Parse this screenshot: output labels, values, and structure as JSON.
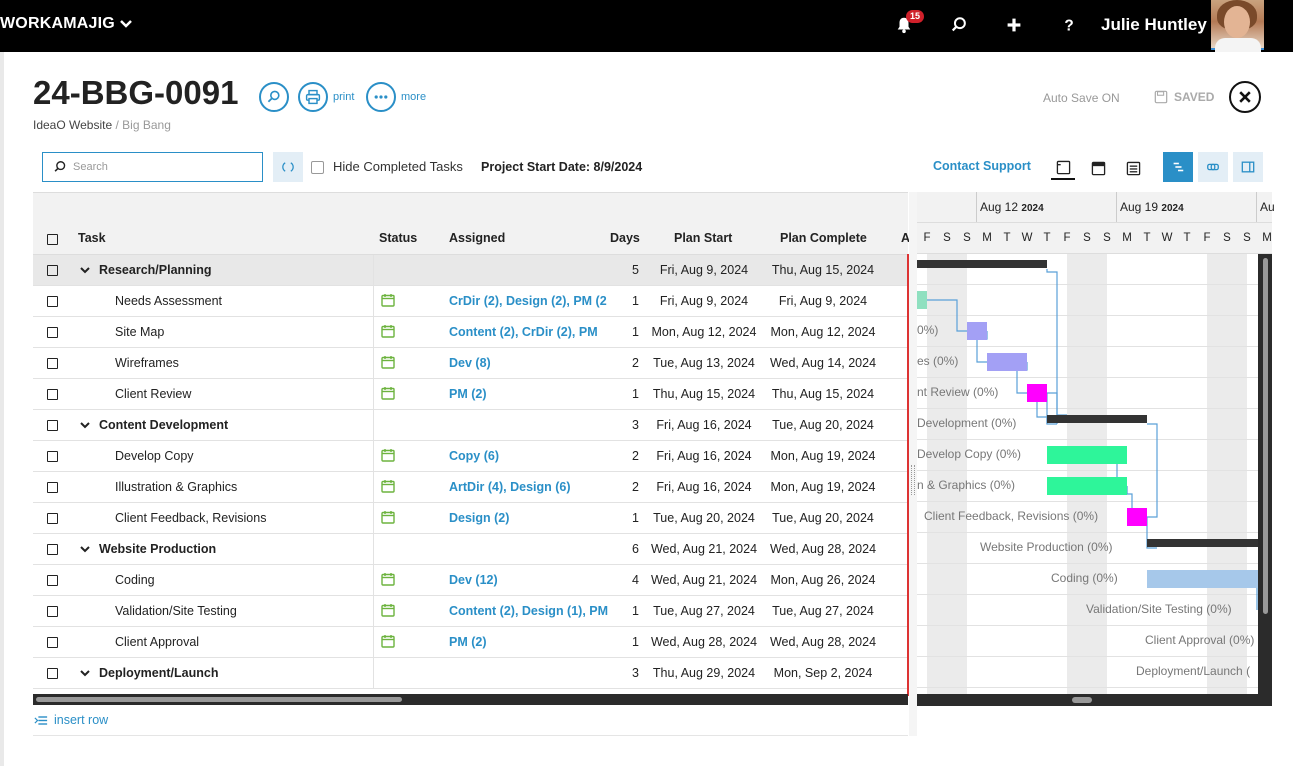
{
  "topbar": {
    "brand": "WORKAMAJIG",
    "notification_count": "15",
    "user_name": "Julie Huntley"
  },
  "header": {
    "project_number": "24-BBG-0091",
    "print_label": "print",
    "more_label": "more",
    "client": "IdeaO Website",
    "separator": " / ",
    "project_name": "Big Bang",
    "autosave": "Auto Save ON",
    "saved": "SAVED"
  },
  "toolbar": {
    "search_placeholder": "Search",
    "hide_completed_label": "Hide Completed Tasks",
    "project_start": "Project Start Date: 8/9/2024",
    "contact_support": "Contact Support"
  },
  "grid": {
    "columns": {
      "task": "Task",
      "status": "Status",
      "assigned": "Assigned",
      "days": "Days",
      "plan_start": "Plan Start",
      "plan_complete": "Plan Complete",
      "actual": "A"
    },
    "rows": [
      {
        "task": "Research/Planning",
        "group": true,
        "assigned": "",
        "days": "5",
        "start": "Fri, Aug 9, 2024",
        "complete": "Thu, Aug 15, 2024"
      },
      {
        "task": "Needs Assessment",
        "group": false,
        "assigned": "CrDir (2), Design (2), PM (2",
        "days": "1",
        "start": "Fri, Aug 9, 2024",
        "complete": "Fri, Aug 9, 2024"
      },
      {
        "task": "Site Map",
        "group": false,
        "assigned": "Content (2), CrDir (2), PM",
        "days": "1",
        "start": "Mon, Aug 12, 2024",
        "complete": "Mon, Aug 12, 2024"
      },
      {
        "task": "Wireframes",
        "group": false,
        "assigned": "Dev (8)",
        "days": "2",
        "start": "Tue, Aug 13, 2024",
        "complete": "Wed, Aug 14, 2024"
      },
      {
        "task": "Client Review",
        "group": false,
        "assigned": "PM (2)",
        "days": "1",
        "start": "Thu, Aug 15, 2024",
        "complete": "Thu, Aug 15, 2024"
      },
      {
        "task": "Content Development",
        "group": true,
        "assigned": "",
        "days": "3",
        "start": "Fri, Aug 16, 2024",
        "complete": "Tue, Aug 20, 2024"
      },
      {
        "task": "Develop Copy",
        "group": false,
        "assigned": "Copy (6)",
        "days": "2",
        "start": "Fri, Aug 16, 2024",
        "complete": "Mon, Aug 19, 2024"
      },
      {
        "task": "Illustration & Graphics",
        "group": false,
        "assigned": "ArtDir (4), Design (6)",
        "days": "2",
        "start": "Fri, Aug 16, 2024",
        "complete": "Mon, Aug 19, 2024"
      },
      {
        "task": "Client Feedback, Revisions",
        "group": false,
        "assigned": "Design (2)",
        "days": "1",
        "start": "Tue, Aug 20, 2024",
        "complete": "Tue, Aug 20, 2024"
      },
      {
        "task": "Website Production",
        "group": true,
        "assigned": "",
        "days": "6",
        "start": "Wed, Aug 21, 2024",
        "complete": "Wed, Aug 28, 2024"
      },
      {
        "task": "Coding",
        "group": false,
        "assigned": "Dev (12)",
        "days": "4",
        "start": "Wed, Aug 21, 2024",
        "complete": "Mon, Aug 26, 2024"
      },
      {
        "task": "Validation/Site Testing",
        "group": false,
        "assigned": "Content (2), Design (1), PM",
        "days": "1",
        "start": "Tue, Aug 27, 2024",
        "complete": "Tue, Aug 27, 2024"
      },
      {
        "task": "Client Approval",
        "group": false,
        "assigned": "PM (2)",
        "days": "1",
        "start": "Wed, Aug 28, 2024",
        "complete": "Wed, Aug 28, 2024"
      },
      {
        "task": "Deployment/Launch",
        "group": true,
        "assigned": "",
        "days": "3",
        "start": "Thu, Aug 29, 2024",
        "complete": "Mon, Sep 2, 2024"
      }
    ],
    "insert_row": "insert row"
  },
  "gantt": {
    "weeks": [
      {
        "label": "Aug 12",
        "year": "2024"
      },
      {
        "label": "Aug 19",
        "year": "2024"
      },
      {
        "label": "Au",
        "year": ""
      }
    ],
    "days": [
      "F",
      "S",
      "S",
      "M",
      "T",
      "W",
      "T",
      "F",
      "S",
      "S",
      "M",
      "T",
      "W",
      "T",
      "F",
      "S",
      "S",
      "M"
    ],
    "labels": [
      "",
      "",
      "0%)",
      "es (0%)",
      "nt Review (0%)",
      "Development (0%)",
      "Develop Copy (0%)",
      "n & Graphics (0%)",
      "Client Feedback, Revisions (0%)",
      "Website Production (0%)",
      "Coding (0%)",
      "Validation/Site Testing (0%)",
      "Client Approval (0%)",
      "Deployment/Launch ("
    ],
    "colors": {
      "summary": "#333333",
      "research": "#8fe0c0",
      "planning": "#a3a0f5",
      "review": "#ff00ff",
      "content": "#2ef59a",
      "coding": "#a6c8ea",
      "link": "#5aa0d8"
    }
  }
}
